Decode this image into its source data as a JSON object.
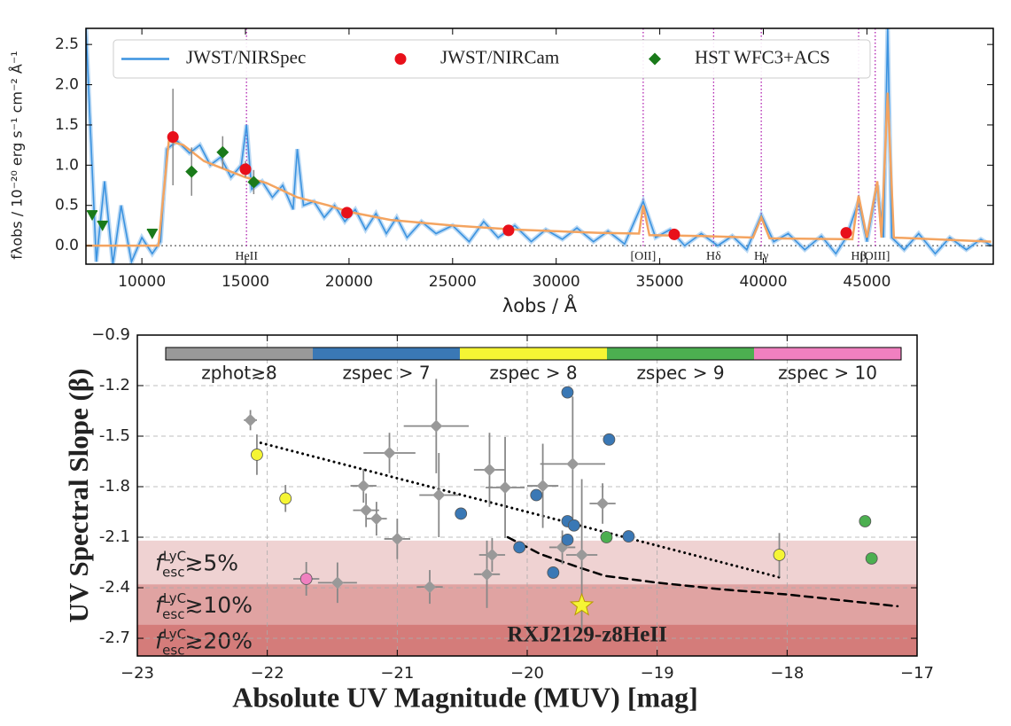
{
  "chart_data": [
    {
      "type": "spectrum",
      "x_label": "λobs / Å",
      "y_label": "fλobs / 10⁻²⁰ erg s⁻¹ cm⁻² Å⁻¹",
      "xlim": [
        7300,
        51100
      ],
      "ylim": [
        -0.23,
        2.7
      ],
      "xticks": [
        10000,
        15000,
        20000,
        25000,
        30000,
        35000,
        40000,
        45000
      ],
      "yticks": [
        {
          "value": 0,
          "label": "0.0"
        },
        {
          "value": 0.5,
          "label": "0.5"
        },
        {
          "value": 1,
          "label": "1.0"
        },
        {
          "value": 1.5,
          "label": "1.5"
        },
        {
          "value": 2,
          "label": "2.0"
        },
        {
          "value": 2.5,
          "label": "2.5"
        }
      ],
      "zero_line": true,
      "legend": "top",
      "series": [
        {
          "name": "JWST/NIRSpec",
          "kind": "line",
          "color": "#3b93e0",
          "x": [
            7300,
            7800,
            8200,
            8600,
            9000,
            9500,
            10000,
            10500,
            10900,
            11200,
            11700,
            12300,
            12800,
            13300,
            13800,
            14300,
            14800,
            15050,
            15300,
            15800,
            16300,
            16800,
            17300,
            17500,
            17800,
            18300,
            18800,
            19300,
            19800,
            20300,
            20800,
            21300,
            21800,
            22300,
            22800,
            23500,
            24200,
            25000,
            25800,
            26500,
            27200,
            28000,
            28800,
            29500,
            30300,
            31000,
            31800,
            32500,
            33300,
            34200,
            34800,
            35500,
            36200,
            37000,
            37800,
            38500,
            39200,
            39900,
            40500,
            41200,
            42000,
            42800,
            43500,
            44000,
            44600,
            45000,
            45500,
            45800,
            46000,
            46200,
            46800,
            47500,
            48300,
            49000,
            49800,
            50500,
            51000
          ],
          "values": [
            2.7,
            -0.2,
            0.8,
            -0.23,
            0.5,
            -0.2,
            0.1,
            -0.1,
            0.05,
            1.2,
            1.3,
            1.15,
            1.25,
            1.0,
            1.1,
            0.85,
            1.0,
            1.5,
            0.7,
            0.8,
            0.6,
            0.75,
            0.45,
            1.2,
            0.5,
            0.55,
            0.35,
            0.5,
            0.3,
            0.45,
            0.2,
            0.4,
            0.15,
            0.35,
            0.1,
            0.3,
            0.15,
            0.25,
            0.05,
            0.3,
            0.1,
            0.25,
            0.05,
            0.2,
            0.08,
            0.22,
            0.05,
            0.18,
            0.02,
            0.55,
            0.1,
            0.2,
            0.0,
            0.15,
            0.0,
            0.12,
            -0.05,
            0.38,
            0.05,
            0.15,
            -0.05,
            0.12,
            -0.1,
            0.1,
            0.55,
            0.05,
            0.75,
            0.1,
            2.7,
            0.1,
            -0.05,
            0.15,
            -0.1,
            0.1,
            -0.05,
            0.08,
            0.0
          ]
        },
        {
          "name": "JWST/NIRCam",
          "kind": "scatter",
          "marker": "circle",
          "color": "#e8101a",
          "x": [
            11500,
            15000,
            19900,
            27700,
            35700,
            44000
          ],
          "values": [
            1.35,
            0.95,
            0.41,
            0.19,
            0.14,
            0.16
          ],
          "yerr": [
            0.6,
            0.1,
            0.05,
            0.03,
            0.03,
            0.03
          ]
        },
        {
          "name": "HST WFC3+ACS",
          "kind": "scatter",
          "marker": "diamond",
          "color": "#1a7a1a",
          "x": [
            12400,
            13900,
            15400
          ],
          "values": [
            0.92,
            1.16,
            0.79
          ],
          "yerr": [
            0.3,
            0.2,
            0.15
          ],
          "upper_limits_x": [
            7600,
            8100,
            10500
          ],
          "upper_limits": [
            0.43,
            0.3,
            0.2
          ]
        }
      ],
      "model": {
        "color": "#f4a460",
        "x": [
          7300,
          10800,
          11300,
          12000,
          13000,
          14000,
          15000,
          16000,
          17500,
          19000,
          20000,
          22000,
          25000,
          28000,
          32000,
          34000,
          34200,
          34500,
          37000,
          39500,
          39900,
          40300,
          44300,
          44600,
          45000,
          45500,
          45700,
          46000,
          46300,
          51000
        ],
        "values": [
          0,
          0,
          1.3,
          1.25,
          1.05,
          0.95,
          0.85,
          0.78,
          0.6,
          0.5,
          0.42,
          0.32,
          0.25,
          0.2,
          0.16,
          0.15,
          0.5,
          0.13,
          0.12,
          0.1,
          0.35,
          0.09,
          0.08,
          0.62,
          0.1,
          0.8,
          0.1,
          1.9,
          0.1,
          0.05
        ]
      },
      "line_color": "#b020b0",
      "lines": [
        {
          "label": "HeII",
          "x": 15050
        },
        {
          "label": "[OII]",
          "x": 34200
        },
        {
          "label": "Hδ",
          "x": 37600
        },
        {
          "label": "Hγ",
          "x": 39900
        },
        {
          "label": "Hβ",
          "x": 44600
        },
        {
          "label": "[OIII]",
          "x": 45400
        }
      ]
    },
    {
      "type": "scatter",
      "x_label": "Absolute UV Magnitude (MUV) [mag]",
      "y_label": "UV Spectral Slope (β)",
      "xlim": [
        -23,
        -17
      ],
      "ylim": [
        -2.805,
        -0.9
      ],
      "xticks": [
        {
          "value": -23,
          "label": "−23"
        },
        {
          "value": -22,
          "label": "−22"
        },
        {
          "value": -21,
          "label": "−21"
        },
        {
          "value": -20,
          "label": "−20"
        },
        {
          "value": -19,
          "label": "−19"
        },
        {
          "value": -18,
          "label": "−18"
        },
        {
          "value": -17,
          "label": "−17"
        }
      ],
      "yticks": [
        {
          "value": -0.9,
          "label": "−0.9"
        },
        {
          "value": -1.2,
          "label": "-1.2"
        },
        {
          "value": -1.5,
          "label": "-1.5"
        },
        {
          "value": -1.8,
          "label": "-1.8"
        },
        {
          "value": -2.1,
          "label": "-2.1"
        },
        {
          "value": -2.4,
          "label": "-2.4"
        },
        {
          "value": -2.7,
          "label": "-2.7"
        }
      ],
      "grid": true,
      "band_symbol": {
        "base": "f",
        "sub": "esc",
        "sup": "LyC"
      },
      "bands": [
        {
          "upper": -2.12,
          "label": "≳5%",
          "color": "#efd2d2"
        },
        {
          "upper": -2.38,
          "label": "≳10%",
          "color": "#e0a3a2"
        },
        {
          "upper": -2.62,
          "label": "≳20%",
          "color": "#d47c7a"
        }
      ],
      "series": [
        {
          "name": "zphot≳8",
          "marker": "diamond",
          "color": "#999999",
          "x": [
            -22.13,
            -21.06,
            -21.26,
            -21.24,
            -21.16,
            -21.0,
            -20.7,
            -20.68,
            -20.75,
            -21.46,
            -20.29,
            -20.17,
            -20.27,
            -20.31,
            -19.88,
            -19.65,
            -19.73,
            -19.58,
            -19.42
          ],
          "values": [
            -1.405,
            -1.6,
            -1.795,
            -1.94,
            -1.99,
            -2.11,
            -1.44,
            -1.85,
            -2.395,
            -2.37,
            -1.7,
            -1.805,
            -2.205,
            -2.32,
            -1.795,
            -1.665,
            -2.16,
            -2.205,
            -1.9
          ],
          "xerr": [
            0.05,
            0.2,
            0.1,
            0.1,
            0.08,
            0.1,
            0.25,
            0.15,
            0.1,
            0.15,
            0.12,
            0.15,
            0.1,
            0.1,
            0.12,
            0.25,
            0.1,
            0.12,
            0.1
          ],
          "yerr": [
            0.06,
            0.12,
            0.1,
            0.1,
            0.1,
            0.12,
            0.28,
            0.25,
            0.1,
            0.12,
            0.22,
            0.3,
            0.1,
            0.2,
            0.25,
            0.4,
            0.1,
            0.45,
            0.12
          ]
        },
        {
          "name": "zspec > 7",
          "marker": "circle",
          "color": "#3a78b5",
          "x": [
            -19.69,
            -19.37,
            -19.93,
            -20.51,
            -19.69,
            -19.64,
            -19.69,
            -19.22,
            -20.06,
            -19.8
          ],
          "values": [
            -1.24,
            -1.52,
            -1.85,
            -1.96,
            -2.005,
            -2.03,
            -2.115,
            -2.095,
            -2.16,
            -2.31
          ]
        },
        {
          "name": "zspec > 8",
          "marker": "circle",
          "color": "#f5f534",
          "x": [
            -22.08,
            -21.86,
            -18.06
          ],
          "values": [
            -1.61,
            -1.87,
            -2.205
          ],
          "yerr": [
            0.12,
            0.08,
            0.13
          ]
        },
        {
          "name": "zspec > 9",
          "marker": "circle",
          "color": "#4caf50",
          "x": [
            -19.39,
            -17.4,
            -17.35
          ],
          "values": [
            -2.1,
            -2.005,
            -2.226
          ]
        },
        {
          "name": "zspec > 10",
          "marker": "circle",
          "color": "#f080c0",
          "x": [
            -21.7
          ],
          "values": [
            -2.347
          ],
          "xerr": [
            0.1
          ],
          "yerr": [
            0.1
          ]
        }
      ],
      "relations": [
        {
          "style": "dotted",
          "x": [
            -22.05,
            -18.05
          ],
          "values": [
            -1.54,
            -2.34
          ]
        },
        {
          "style": "dashed",
          "x": [
            -20.15,
            -19.9,
            -19.6,
            -19.4,
            -19.0,
            -18.5,
            -18.0,
            -17.15
          ],
          "values": [
            -2.1,
            -2.2,
            -2.28,
            -2.33,
            -2.37,
            -2.41,
            -2.44,
            -2.51
          ]
        }
      ],
      "highlight": {
        "label": "RXJ2129-z8HeII",
        "x": -19.58,
        "value": -2.505,
        "color": "#f5f534"
      }
    }
  ]
}
